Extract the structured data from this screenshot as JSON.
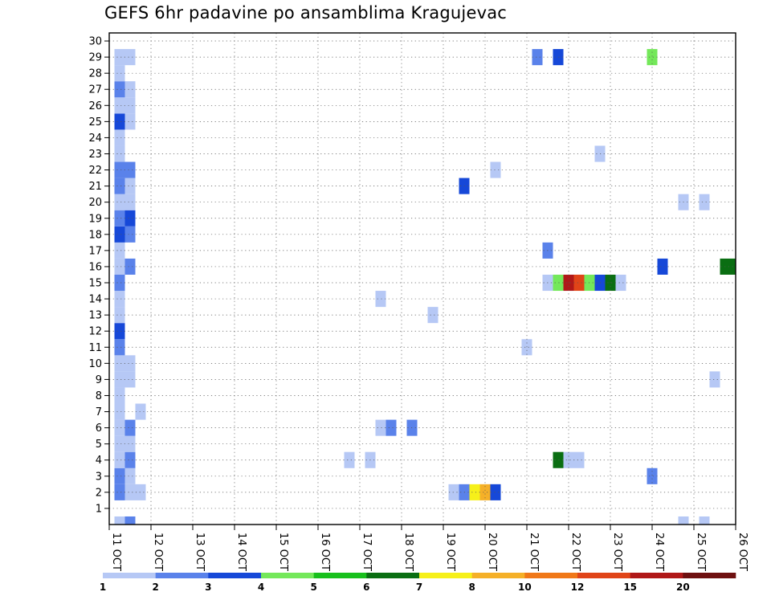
{
  "title": "GEFS 6hr padavine po ansamblima Kragujevac",
  "chart_data": {
    "type": "heatmap",
    "title": "GEFS 6hr padavine po ansamblima Kragujevac",
    "xlabel": "",
    "ylabel": "",
    "x_ticks": [
      "11 OCT",
      "12 OCT",
      "13 OCT",
      "14 OCT",
      "15 OCT",
      "16 OCT",
      "17 OCT",
      "18 OCT",
      "19 OCT",
      "20 OCT",
      "21 OCT",
      "22 OCT",
      "23 OCT",
      "24 OCT",
      "25 OCT",
      "26 OCT"
    ],
    "x_range_days": [
      11,
      26
    ],
    "y_ticks": [
      1,
      2,
      3,
      4,
      5,
      6,
      7,
      8,
      9,
      10,
      11,
      12,
      13,
      14,
      15,
      16,
      17,
      18,
      19,
      20,
      21,
      22,
      23,
      24,
      25,
      26,
      27,
      28,
      29,
      30
    ],
    "y_range": [
      0,
      30
    ],
    "grid": true,
    "colorbar": {
      "labels": [
        "1",
        "2",
        "3",
        "4",
        "5",
        "6",
        "7",
        "8",
        "10",
        "12",
        "15",
        "20"
      ],
      "colors": [
        "#b6c8f5",
        "#5a82ea",
        "#1648d8",
        "#74e85a",
        "#18c01c",
        "#0a6e12",
        "#f6f01a",
        "#f5b028",
        "#f07818",
        "#e04418",
        "#b01818",
        "#6e1010"
      ]
    },
    "cells": [
      {
        "m": 0,
        "d": 11.25,
        "c": 1
      },
      {
        "m": 0,
        "d": 11.5,
        "c": 2
      },
      {
        "m": 0,
        "d": 24.75,
        "c": 1
      },
      {
        "m": 0,
        "d": 25.25,
        "c": 1
      },
      {
        "m": 2,
        "d": 11.25,
        "c": 2
      },
      {
        "m": 2,
        "d": 11.5,
        "c": 1
      },
      {
        "m": 2,
        "d": 11.75,
        "c": 1
      },
      {
        "m": 2,
        "d": 19.25,
        "c": 1
      },
      {
        "m": 2,
        "d": 19.5,
        "c": 2
      },
      {
        "m": 2,
        "d": 19.75,
        "c": 7
      },
      {
        "m": 2,
        "d": 20.0,
        "c": 8
      },
      {
        "m": 2,
        "d": 20.25,
        "c": 3
      },
      {
        "m": 3,
        "d": 11.25,
        "c": 2
      },
      {
        "m": 3,
        "d": 11.5,
        "c": 1
      },
      {
        "m": 3,
        "d": 24.0,
        "c": 2
      },
      {
        "m": 4,
        "d": 11.25,
        "c": 1
      },
      {
        "m": 4,
        "d": 11.5,
        "c": 2
      },
      {
        "m": 4,
        "d": 16.75,
        "c": 1
      },
      {
        "m": 4,
        "d": 17.25,
        "c": 1
      },
      {
        "m": 4,
        "d": 21.75,
        "c": 6
      },
      {
        "m": 4,
        "d": 22.0,
        "c": 1
      },
      {
        "m": 4,
        "d": 22.25,
        "c": 1
      },
      {
        "m": 5,
        "d": 11.25,
        "c": 1
      },
      {
        "m": 5,
        "d": 11.5,
        "c": 1
      },
      {
        "m": 6,
        "d": 11.25,
        "c": 1
      },
      {
        "m": 6,
        "d": 11.5,
        "c": 2
      },
      {
        "m": 6,
        "d": 17.5,
        "c": 1
      },
      {
        "m": 6,
        "d": 17.75,
        "c": 2
      },
      {
        "m": 6,
        "d": 18.25,
        "c": 2
      },
      {
        "m": 7,
        "d": 11.25,
        "c": 1
      },
      {
        "m": 7,
        "d": 11.75,
        "c": 1
      },
      {
        "m": 8,
        "d": 11.25,
        "c": 1
      },
      {
        "m": 9,
        "d": 11.25,
        "c": 1
      },
      {
        "m": 9,
        "d": 11.5,
        "c": 1
      },
      {
        "m": 9,
        "d": 25.5,
        "c": 1
      },
      {
        "m": 10,
        "d": 11.25,
        "c": 1
      },
      {
        "m": 10,
        "d": 11.5,
        "c": 1
      },
      {
        "m": 11,
        "d": 11.25,
        "c": 2
      },
      {
        "m": 11,
        "d": 21.0,
        "c": 1
      },
      {
        "m": 12,
        "d": 11.25,
        "c": 3
      },
      {
        "m": 13,
        "d": 11.25,
        "c": 1
      },
      {
        "m": 13,
        "d": 18.75,
        "c": 1
      },
      {
        "m": 14,
        "d": 11.25,
        "c": 1
      },
      {
        "m": 14,
        "d": 17.5,
        "c": 1
      },
      {
        "m": 15,
        "d": 11.25,
        "c": 2
      },
      {
        "m": 15,
        "d": 21.5,
        "c": 1
      },
      {
        "m": 15,
        "d": 21.75,
        "c": 4
      },
      {
        "m": 15,
        "d": 22.0,
        "c": 11
      },
      {
        "m": 15,
        "d": 22.25,
        "c": 10
      },
      {
        "m": 15,
        "d": 22.5,
        "c": 4
      },
      {
        "m": 15,
        "d": 22.75,
        "c": 3
      },
      {
        "m": 15,
        "d": 23.0,
        "c": 6
      },
      {
        "m": 15,
        "d": 23.25,
        "c": 1
      },
      {
        "m": 16,
        "d": 11.25,
        "c": 1
      },
      {
        "m": 16,
        "d": 11.5,
        "c": 2
      },
      {
        "m": 16,
        "d": 24.25,
        "c": 3
      },
      {
        "m": 16,
        "d": 25.75,
        "c": 6
      },
      {
        "m": 16,
        "d": 26.0,
        "c": 6
      },
      {
        "m": 17,
        "d": 11.25,
        "c": 1
      },
      {
        "m": 17,
        "d": 21.5,
        "c": 2
      },
      {
        "m": 18,
        "d": 11.25,
        "c": 3
      },
      {
        "m": 18,
        "d": 11.5,
        "c": 2
      },
      {
        "m": 19,
        "d": 11.25,
        "c": 2
      },
      {
        "m": 19,
        "d": 11.5,
        "c": 3
      },
      {
        "m": 20,
        "d": 11.25,
        "c": 1
      },
      {
        "m": 20,
        "d": 11.5,
        "c": 1
      },
      {
        "m": 20,
        "d": 24.75,
        "c": 1
      },
      {
        "m": 20,
        "d": 25.25,
        "c": 1
      },
      {
        "m": 21,
        "d": 11.25,
        "c": 2
      },
      {
        "m": 21,
        "d": 11.5,
        "c": 1
      },
      {
        "m": 21,
        "d": 19.5,
        "c": 3
      },
      {
        "m": 22,
        "d": 11.25,
        "c": 2
      },
      {
        "m": 22,
        "d": 11.5,
        "c": 2
      },
      {
        "m": 22,
        "d": 20.25,
        "c": 1
      },
      {
        "m": 23,
        "d": 11.25,
        "c": 1
      },
      {
        "m": 23,
        "d": 22.75,
        "c": 1
      },
      {
        "m": 24,
        "d": 11.25,
        "c": 1
      },
      {
        "m": 25,
        "d": 11.25,
        "c": 3
      },
      {
        "m": 25,
        "d": 11.5,
        "c": 1
      },
      {
        "m": 26,
        "d": 11.25,
        "c": 1
      },
      {
        "m": 26,
        "d": 11.5,
        "c": 1
      },
      {
        "m": 27,
        "d": 11.25,
        "c": 2
      },
      {
        "m": 27,
        "d": 11.5,
        "c": 1
      },
      {
        "m": 28,
        "d": 11.25,
        "c": 1
      },
      {
        "m": 29,
        "d": 11.25,
        "c": 1
      },
      {
        "m": 29,
        "d": 11.5,
        "c": 1
      },
      {
        "m": 29,
        "d": 21.25,
        "c": 2
      },
      {
        "m": 29,
        "d": 21.75,
        "c": 3
      },
      {
        "m": 29,
        "d": 24.0,
        "c": 4
      }
    ]
  }
}
